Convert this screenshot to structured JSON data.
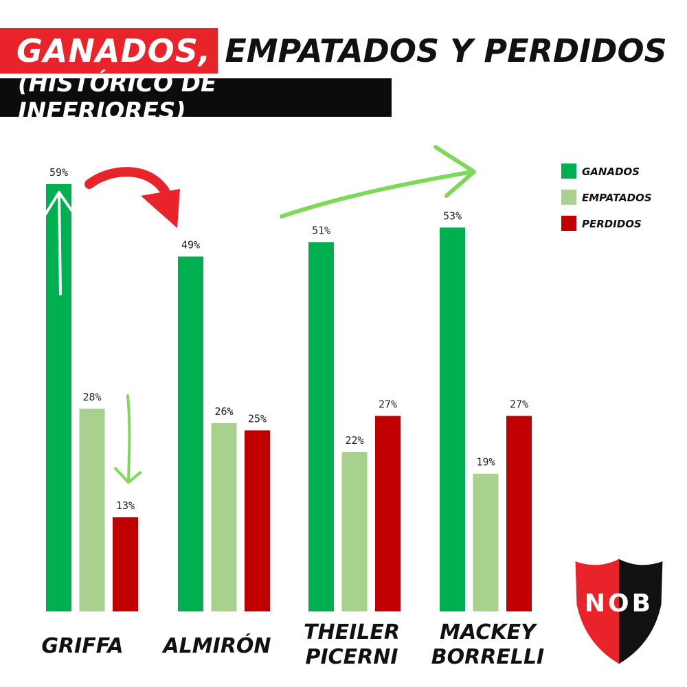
{
  "title": {
    "highlight": "GANADOS,",
    "rest": "EMPATADOS Y PERDIDOS",
    "subtitle": "(HISTÓRICO DE INFERIORES)"
  },
  "logo": {
    "text": "NOB"
  },
  "colors": {
    "ganados": "#00b050",
    "empatados": "#a9d18e",
    "perdidos": "#c00000",
    "title_red": "#e8232a",
    "arrow_red": "#e8232a",
    "arrow_green": "#7dd957"
  },
  "chart_data": {
    "type": "bar",
    "categories": [
      [
        "GRIFFA"
      ],
      [
        "ALMIRÓN"
      ],
      [
        "THEILER",
        "PICERNI"
      ],
      [
        "MACKEY",
        "BORRELLI"
      ]
    ],
    "series": [
      {
        "name": "GANADOS",
        "values": [
          59,
          49,
          51,
          53
        ],
        "labels": [
          "59%",
          "49%",
          "51%",
          "53%"
        ]
      },
      {
        "name": "EMPATADOS",
        "values": [
          28,
          26,
          22,
          19
        ],
        "labels": [
          "28%",
          "26%",
          "22%",
          "19%"
        ]
      },
      {
        "name": "PERDIDOS",
        "values": [
          13,
          25,
          27,
          27
        ],
        "labels": [
          "13%",
          "25%",
          "27%",
          "27%"
        ]
      }
    ],
    "ylim": [
      0,
      59
    ],
    "grid": false,
    "legend_position": "top-right"
  }
}
